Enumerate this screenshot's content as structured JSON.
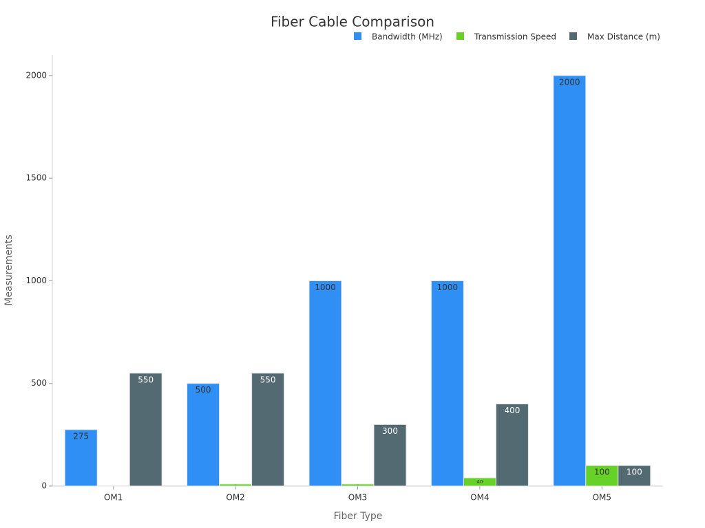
{
  "chart_data": {
    "type": "bar",
    "title": "Fiber Cable Comparison",
    "x_label": "Fiber Type",
    "y_label": "Measurements",
    "categories": [
      "OM1",
      "OM2",
      "OM3",
      "OM4",
      "OM5"
    ],
    "series": [
      {
        "name": "Bandwidth (MHz)",
        "color": "#2f8ff5",
        "values": [
          275,
          500,
          1000,
          1000,
          2000
        ]
      },
      {
        "name": "Transmission Speed",
        "color": "#66d126",
        "values": [
          1,
          10,
          10,
          40,
          100
        ]
      },
      {
        "name": "Max Distance (m)",
        "color": "#546a73",
        "values": [
          550,
          550,
          300,
          400,
          100
        ]
      }
    ],
    "ylim": [
      0,
      2100
    ],
    "yticks": [
      0,
      500,
      1000,
      1500,
      2000
    ],
    "legend": "top-right"
  }
}
